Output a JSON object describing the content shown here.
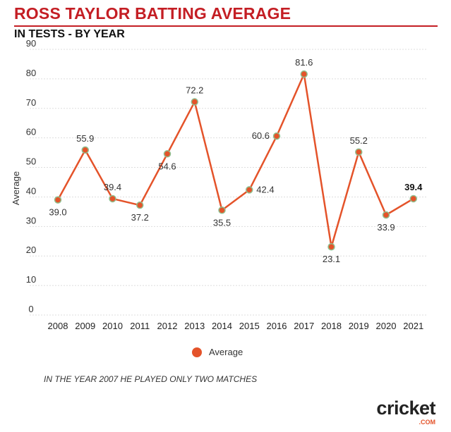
{
  "title": "ROSS TAYLOR BATTING AVERAGE",
  "subtitle": "IN TESTS - BY YEAR",
  "footnote": "IN THE YEAR 2007 HE PLAYED ONLY TWO MATCHES",
  "logo": {
    "word": "cricket",
    "sub": ".COM"
  },
  "colors": {
    "title": "#c41e24",
    "line": "#e4532a",
    "marker_edge": "#8fbf8f",
    "grid": "#dddddd"
  },
  "chart_data": {
    "type": "line",
    "title": "ROSS TAYLOR BATTING AVERAGE",
    "subtitle": "IN TESTS - BY YEAR",
    "xlabel": "",
    "ylabel": "Average",
    "ylim": [
      0,
      90
    ],
    "yticks": [
      0,
      10,
      20,
      30,
      40,
      50,
      60,
      70,
      80,
      90
    ],
    "grid": true,
    "legend": "bottom-center",
    "categories": [
      "2008",
      "2009",
      "2010",
      "2011",
      "2012",
      "2013",
      "2014",
      "2015",
      "2016",
      "2017",
      "2018",
      "2019",
      "2020",
      "2021"
    ],
    "series": [
      {
        "name": "Average",
        "values": [
          39.0,
          55.9,
          39.4,
          37.2,
          54.6,
          72.2,
          35.5,
          42.4,
          60.6,
          81.6,
          23.1,
          55.2,
          33.9,
          39.4
        ],
        "labels": [
          "39.0",
          "55.9",
          "39.4",
          "37.2",
          "54.6",
          "72.2",
          "35.5",
          "42.4",
          "60.6",
          "81.6",
          "23.1",
          "55.2",
          "33.9",
          "39.4"
        ],
        "label_pos": [
          "below",
          "above",
          "above",
          "below",
          "below",
          "above",
          "below",
          "right",
          "left",
          "above",
          "below",
          "above",
          "below",
          "above"
        ]
      }
    ]
  }
}
